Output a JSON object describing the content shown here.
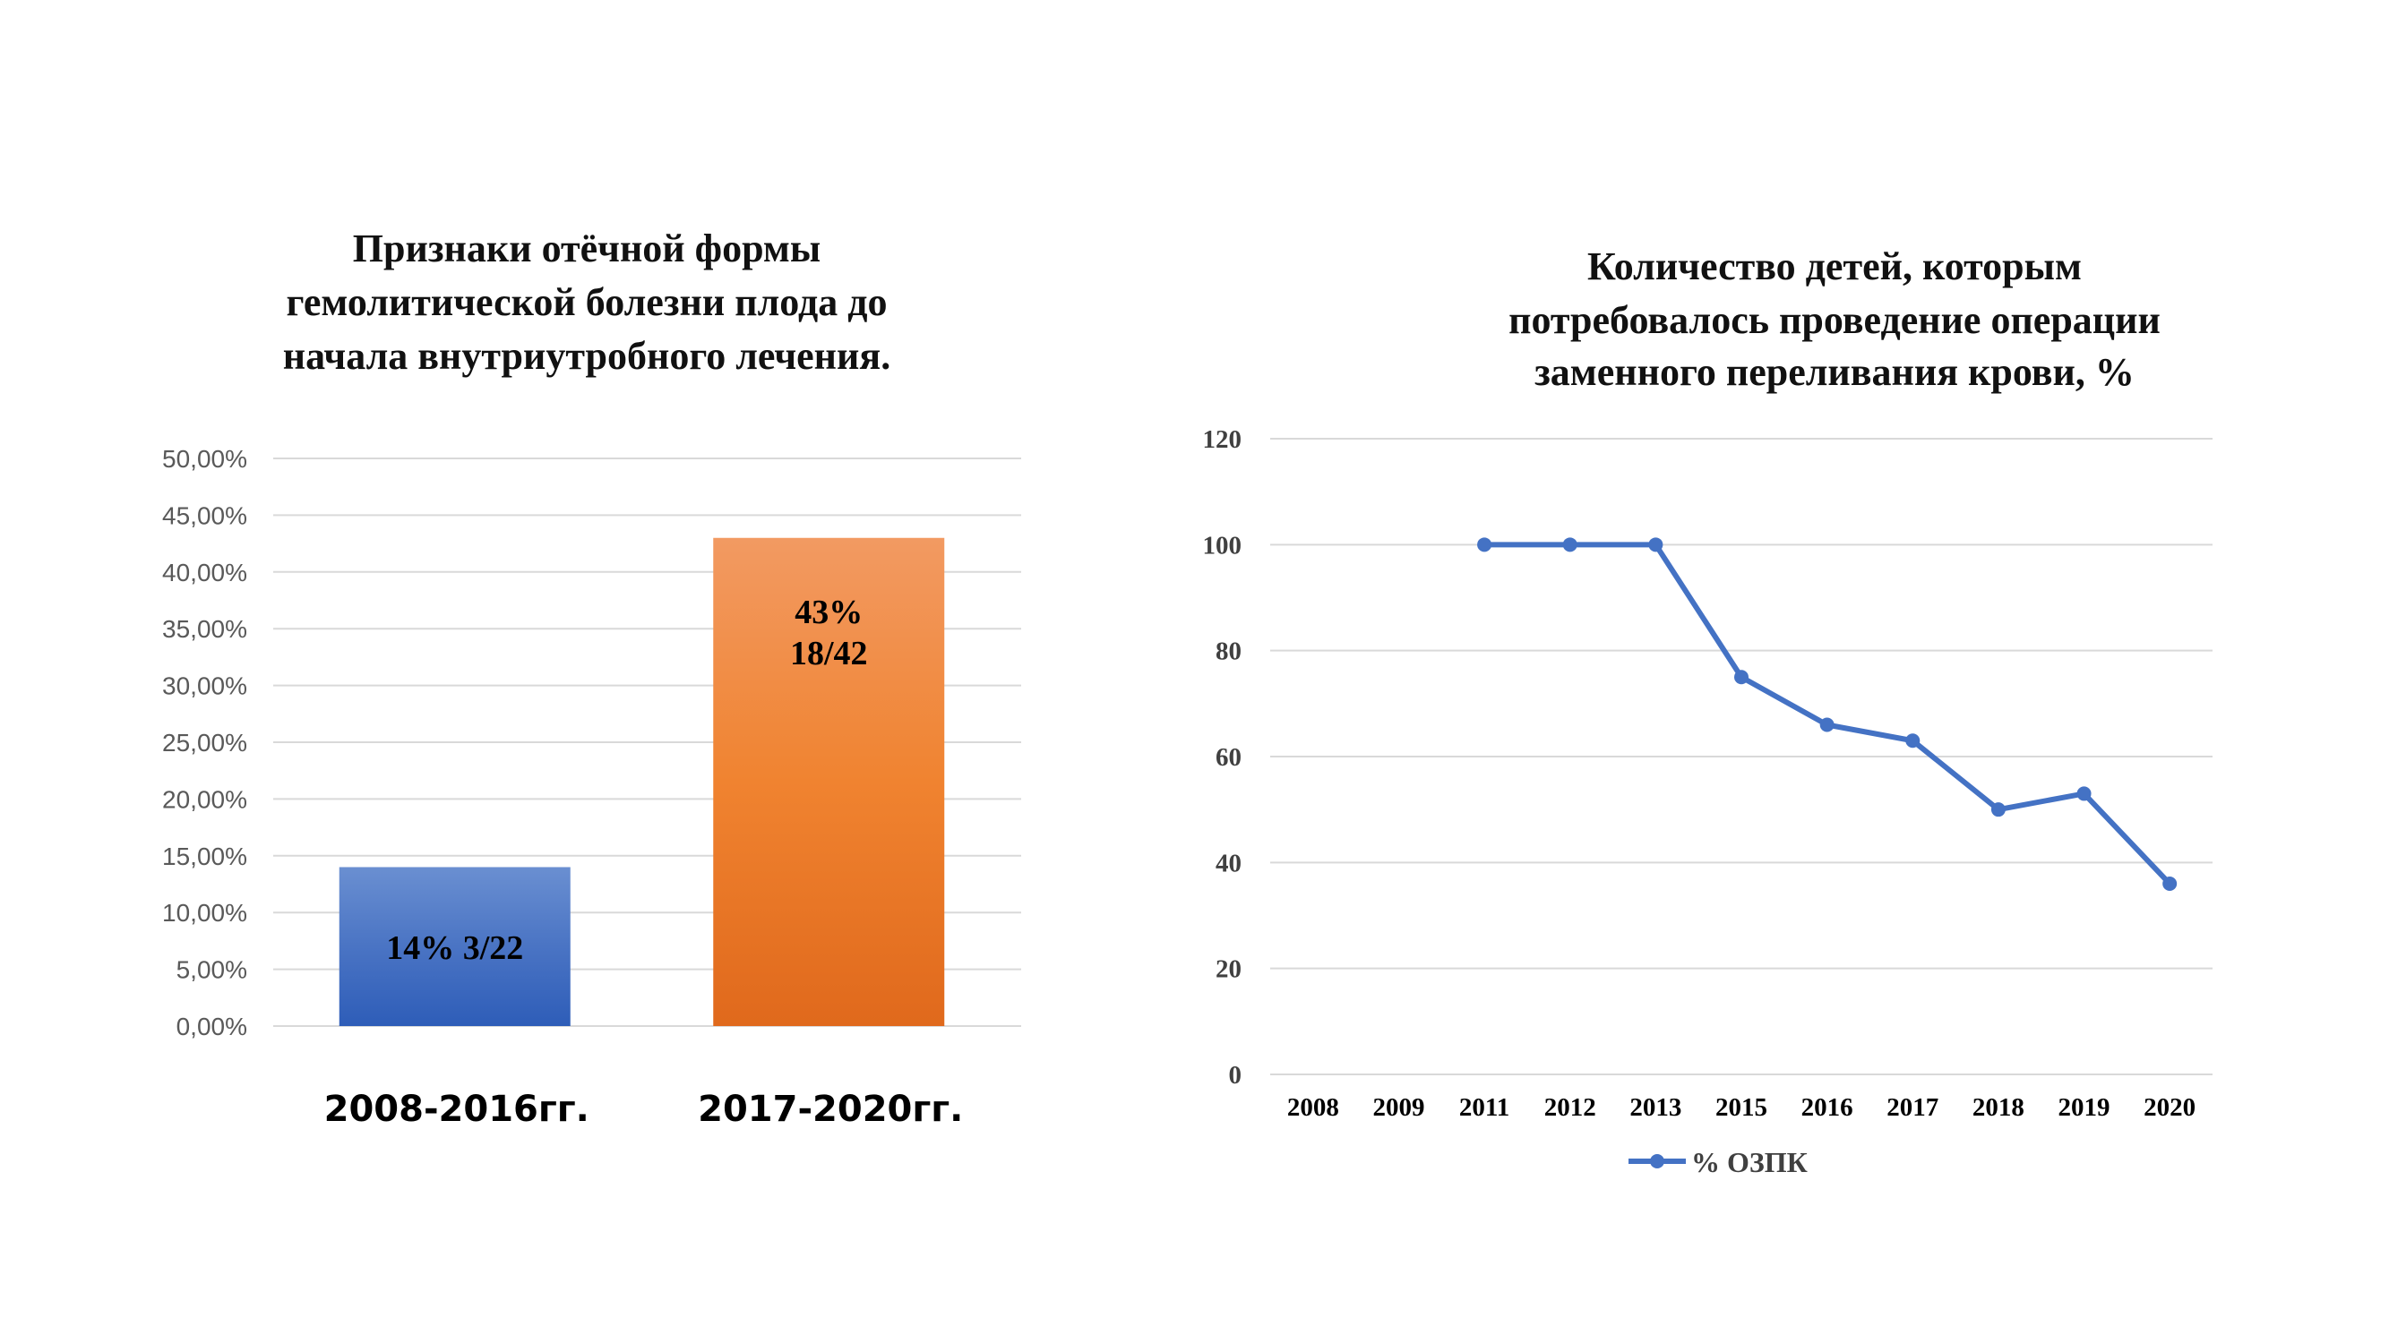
{
  "chart_data": [
    {
      "type": "bar",
      "title_lines": [
        "Признаки отёчной формы",
        "гемолитической болезни плода до",
        "начала внутриутробного лечения."
      ],
      "categories": [
        "2008-2016гг.",
        "2017-2020гг."
      ],
      "values": [
        14,
        43
      ],
      "bar_labels": [
        [
          "14%  3/22"
        ],
        [
          "43%",
          "18/42"
        ]
      ],
      "yticks": [
        "0,00%",
        "5,00%",
        "10,00%",
        "15,00%",
        "20,00%",
        "25,00%",
        "30,00%",
        "35,00%",
        "40,00%",
        "45,00%",
        "50,00%"
      ],
      "ylim": [
        0,
        50
      ],
      "grid": true,
      "colors": [
        "#4472c4",
        "#ed7d31"
      ]
    },
    {
      "type": "line",
      "title_lines": [
        "Количество детей, которым",
        "потребовалось проведение операции",
        "заменного переливания крови, %"
      ],
      "x": [
        "2008",
        "2009",
        "2011",
        "2012",
        "2013",
        "2015",
        "2016",
        "2017",
        "2018",
        "2019",
        "2020"
      ],
      "series": [
        {
          "name": "% ОЗПК",
          "values": [
            null,
            null,
            100,
            100,
            100,
            75,
            66,
            63,
            50,
            53,
            36
          ]
        }
      ],
      "yticks": [
        "0",
        "20",
        "40",
        "60",
        "80",
        "100",
        "120"
      ],
      "ylim": [
        0,
        120
      ],
      "grid": true,
      "legend": "bottom",
      "color": "#4472c4"
    }
  ]
}
